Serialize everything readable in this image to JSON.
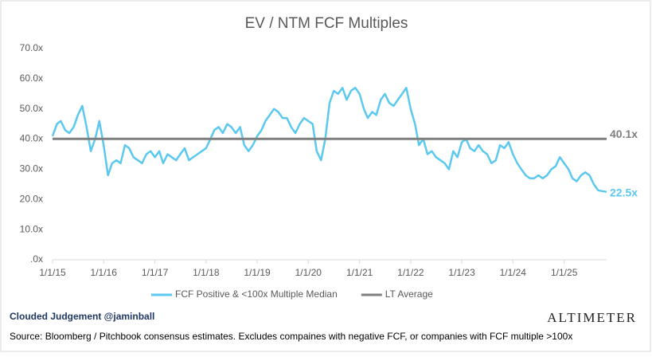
{
  "chart_data": {
    "type": "line",
    "title": "EV / NTM FCF Multiples",
    "ylim": [
      0,
      70
    ],
    "yticks": [
      {
        "value": 0,
        "label": ".0x"
      },
      {
        "value": 10,
        "label": "10.0x"
      },
      {
        "value": 20,
        "label": "20.0x"
      },
      {
        "value": 30,
        "label": "30.0x"
      },
      {
        "value": 40,
        "label": "40.0x"
      },
      {
        "value": 50,
        "label": "50.0x"
      },
      {
        "value": 60,
        "label": "60.0x"
      },
      {
        "value": 70,
        "label": "70.0x"
      }
    ],
    "xlim": [
      "2015-01-01",
      "2025-10-31"
    ],
    "xticks": [
      {
        "value": "2015-01-01",
        "label": "1/1/15"
      },
      {
        "value": "2016-01-01",
        "label": "1/1/16"
      },
      {
        "value": "2017-01-01",
        "label": "1/1/17"
      },
      {
        "value": "2018-01-01",
        "label": "1/1/18"
      },
      {
        "value": "2019-01-01",
        "label": "1/1/19"
      },
      {
        "value": "2020-01-01",
        "label": "1/1/20"
      },
      {
        "value": "2021-01-01",
        "label": "1/1/21"
      },
      {
        "value": "2022-01-01",
        "label": "1/1/22"
      },
      {
        "value": "2023-01-01",
        "label": "1/1/23"
      },
      {
        "value": "2024-01-01",
        "label": "1/1/24"
      },
      {
        "value": "2025-01-01",
        "label": "1/1/25"
      }
    ],
    "x": [
      "2015-01-01",
      "2015-02-01",
      "2015-03-01",
      "2015-04-01",
      "2015-05-01",
      "2015-06-01",
      "2015-07-01",
      "2015-08-01",
      "2015-09-01",
      "2015-10-01",
      "2015-11-01",
      "2015-12-01",
      "2016-01-01",
      "2016-02-01",
      "2016-03-01",
      "2016-04-01",
      "2016-05-01",
      "2016-06-01",
      "2016-07-01",
      "2016-08-01",
      "2016-09-01",
      "2016-10-01",
      "2016-11-01",
      "2016-12-01",
      "2017-01-01",
      "2017-02-01",
      "2017-03-01",
      "2017-04-01",
      "2017-05-01",
      "2017-06-01",
      "2017-07-01",
      "2017-08-01",
      "2017-09-01",
      "2017-10-01",
      "2017-11-01",
      "2017-12-01",
      "2018-01-01",
      "2018-02-01",
      "2018-03-01",
      "2018-04-01",
      "2018-05-01",
      "2018-06-01",
      "2018-07-01",
      "2018-08-01",
      "2018-09-01",
      "2018-10-01",
      "2018-11-01",
      "2018-12-01",
      "2019-01-01",
      "2019-02-01",
      "2019-03-01",
      "2019-04-01",
      "2019-05-01",
      "2019-06-01",
      "2019-07-01",
      "2019-08-01",
      "2019-09-01",
      "2019-10-01",
      "2019-11-01",
      "2019-12-01",
      "2020-01-01",
      "2020-02-01",
      "2020-03-01",
      "2020-04-01",
      "2020-05-01",
      "2020-06-01",
      "2020-07-01",
      "2020-08-01",
      "2020-09-01",
      "2020-10-01",
      "2020-11-01",
      "2020-12-01",
      "2021-01-01",
      "2021-02-01",
      "2021-03-01",
      "2021-04-01",
      "2021-05-01",
      "2021-06-01",
      "2021-07-01",
      "2021-08-01",
      "2021-09-01",
      "2021-10-01",
      "2021-11-01",
      "2021-12-01",
      "2022-01-01",
      "2022-02-01",
      "2022-03-01",
      "2022-04-01",
      "2022-05-01",
      "2022-06-01",
      "2022-07-01",
      "2022-08-01",
      "2022-09-01",
      "2022-10-01",
      "2022-11-01",
      "2022-12-01",
      "2023-01-01",
      "2023-02-01",
      "2023-03-01",
      "2023-04-01",
      "2023-05-01",
      "2023-06-01",
      "2023-07-01",
      "2023-08-01",
      "2023-09-01",
      "2023-10-01",
      "2023-11-01",
      "2023-12-01",
      "2024-01-01",
      "2024-02-01",
      "2024-03-01",
      "2024-04-01",
      "2024-05-01",
      "2024-06-01",
      "2024-07-01",
      "2024-08-01",
      "2024-09-01",
      "2024-10-01",
      "2024-11-01",
      "2024-12-01",
      "2025-01-01",
      "2025-02-01",
      "2025-03-01",
      "2025-04-01",
      "2025-05-01",
      "2025-06-01",
      "2025-07-01",
      "2025-08-01",
      "2025-09-01",
      "2025-10-31"
    ],
    "series": [
      {
        "name": "FCF Positive & <100x Multiple Median",
        "color": "#5bc8f0",
        "end_label": "22.5x",
        "values": [
          41,
          45,
          46,
          43,
          42,
          44,
          48,
          51,
          44,
          36,
          40,
          46,
          38,
          28,
          32,
          33,
          32,
          38,
          37,
          34,
          33,
          32,
          35,
          36,
          34,
          36,
          32,
          35,
          34,
          33,
          35,
          37,
          33,
          34,
          35,
          36,
          37,
          40,
          43,
          44,
          42,
          45,
          44,
          42,
          44,
          38,
          36,
          38,
          41,
          43,
          46,
          48,
          50,
          49,
          47,
          47,
          44,
          42,
          45,
          47,
          46,
          45,
          36,
          33,
          40,
          52,
          56,
          55,
          57,
          53,
          56,
          57,
          55,
          50,
          47,
          49,
          48,
          53,
          55,
          52,
          51,
          53,
          55,
          57,
          50,
          45,
          38,
          40,
          35,
          36,
          34,
          33,
          32,
          30,
          36,
          34,
          39,
          40,
          37,
          36,
          38,
          36,
          35,
          32,
          33,
          38,
          37,
          39,
          35,
          32,
          30,
          28,
          27,
          27,
          28,
          27,
          28,
          30,
          31,
          34,
          32,
          30,
          27,
          26,
          28,
          29,
          28,
          25,
          23,
          22.5
        ]
      },
      {
        "name": "LT Average",
        "color": "#7f7f7f",
        "end_label": "40.1x",
        "x": [
          "2015-01-01",
          "2025-10-31"
        ],
        "values": [
          40.1,
          40.1
        ]
      }
    ],
    "brand": "Clouded Judgement @jaminball",
    "logo": "ALTIMETER",
    "source": "Source: Bloomberg / Pitchbook consensus estimates. Excludes compaines with negative FCF, or companies with FCF multiple >100x"
  }
}
